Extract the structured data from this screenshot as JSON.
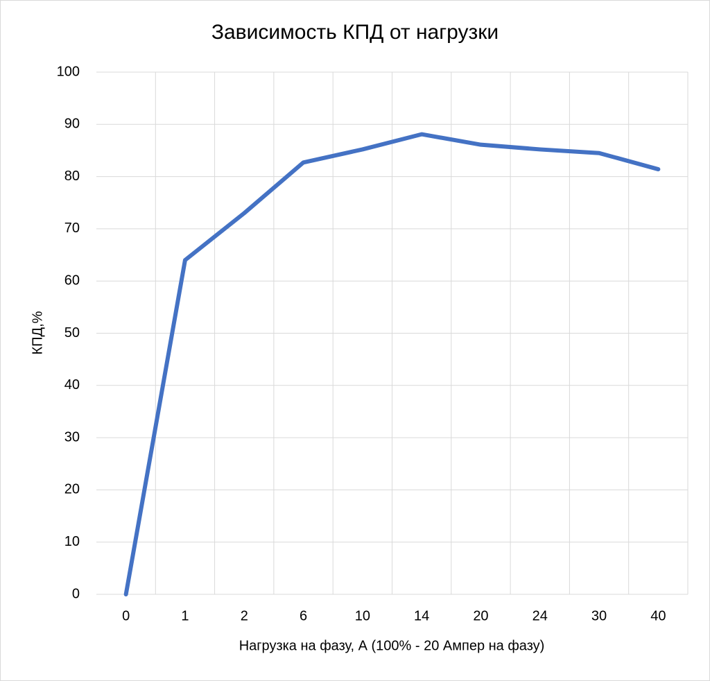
{
  "chart_data": {
    "type": "line",
    "title": "Зависимость КПД от нагрузки",
    "x_label": "Нагрузка на фазу, А (100% - 20 Ампер на фазу)",
    "y_label": "КПД,%",
    "categories": [
      "0",
      "1",
      "2",
      "6",
      "10",
      "14",
      "20",
      "24",
      "30",
      "40"
    ],
    "series": [
      {
        "name": "КПД",
        "color": "#4472c4",
        "values": [
          0,
          64,
          73,
          82.7,
          85.2,
          88.1,
          86.1,
          85.2,
          84.5,
          81.4
        ]
      }
    ],
    "ylim": [
      0,
      100
    ],
    "yticks": [
      0,
      10,
      20,
      30,
      40,
      50,
      60,
      70,
      80,
      90,
      100
    ],
    "grid": true
  }
}
